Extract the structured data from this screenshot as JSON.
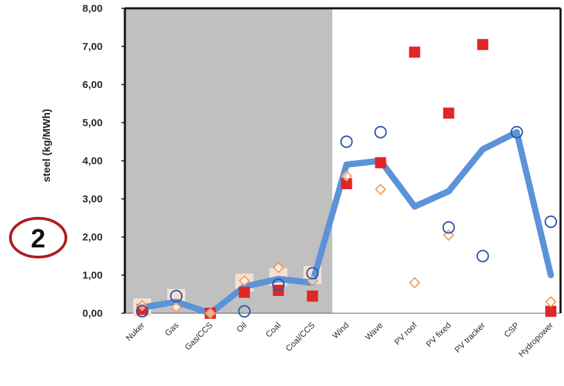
{
  "badge": {
    "label": "2",
    "color": "#b01c1c"
  },
  "chart_data": {
    "type": "scatter",
    "ylabel": "steel (kg/MWh)",
    "ylim": [
      0,
      8
    ],
    "y_ticks": [
      "0,00",
      "1,00",
      "2,00",
      "3,00",
      "4,00",
      "5,00",
      "6,00",
      "7,00",
      "8,00"
    ],
    "y_tick_values": [
      0,
      1,
      2,
      3,
      4,
      5,
      6,
      7,
      8
    ],
    "categories": [
      "Nuker",
      "Gas",
      "Gas/CCS",
      "Oil",
      "Coal",
      "Coal/CCS",
      "Wind",
      "Wave",
      "PV roof",
      "PV fixed",
      "PV tracker",
      "CSP",
      "Hydropower"
    ],
    "shaded_categories": [
      "Nuker",
      "Gas",
      "Gas/CCS",
      "Oil",
      "Coal",
      "Coal/CCS"
    ],
    "grid": false,
    "colors": {
      "line": "#5b93d8",
      "square": "#e02626",
      "circle": "#2b56a8",
      "diamond": "#ef9a5e",
      "shade": "#c0c0c0",
      "pale_square": "#f6e0d3"
    },
    "series": [
      {
        "marker": "line",
        "values": [
          0.15,
          0.3,
          0.0,
          0.7,
          0.9,
          0.8,
          3.9,
          4.0,
          2.8,
          3.2,
          4.3,
          4.75,
          1.0
        ]
      },
      {
        "marker": "square",
        "values": [
          0.1,
          null,
          0.0,
          0.55,
          0.6,
          0.45,
          3.4,
          3.95,
          6.85,
          5.25,
          7.05,
          null,
          0.05
        ]
      },
      {
        "marker": "circle",
        "values": [
          0.05,
          0.45,
          null,
          0.05,
          0.75,
          1.05,
          4.5,
          4.75,
          null,
          2.25,
          1.5,
          4.75,
          2.4
        ]
      },
      {
        "marker": "diamond",
        "values": [
          0.2,
          0.15,
          0.0,
          0.85,
          1.2,
          0.85,
          3.6,
          3.25,
          0.8,
          2.05,
          null,
          null,
          0.3
        ]
      },
      {
        "marker": "pale-square",
        "values": [
          0.15,
          0.4,
          null,
          0.8,
          0.95,
          1.0,
          null,
          null,
          null,
          null,
          null,
          null,
          null
        ]
      }
    ]
  }
}
